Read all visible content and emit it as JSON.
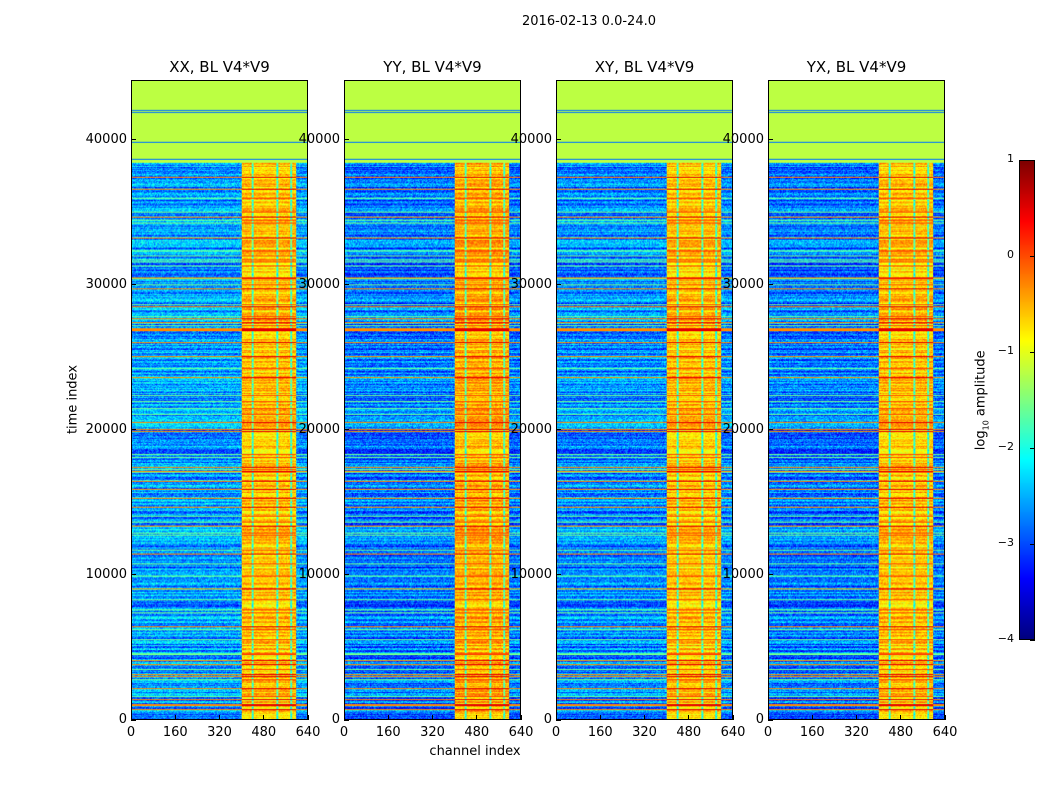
{
  "chart_data": {
    "type": "heatmap",
    "title": "2016-02-13 0.0-24.0",
    "xlabel": "channel index",
    "ylabel": "time index",
    "xlim": [
      0,
      640
    ],
    "ylim": [
      0,
      44100
    ],
    "xticks": [
      "0",
      "160",
      "320",
      "480",
      "640"
    ],
    "xtick_values": [
      0,
      160,
      320,
      480,
      640
    ],
    "yticks": [
      "0",
      "10000",
      "20000",
      "30000",
      "40000"
    ],
    "ytick_values": [
      0,
      10000,
      20000,
      30000,
      40000
    ],
    "panels": [
      {
        "title": "XX, BL V4*V9",
        "background_level": -2.6,
        "band_level": -0.6
      },
      {
        "title": "YY, BL V4*V9",
        "background_level": -2.8,
        "band_level": -0.5
      },
      {
        "title": "XY, BL V4*V9",
        "background_level": -2.7,
        "band_level": -0.6
      },
      {
        "title": "YX, BL V4*V9",
        "background_level": -2.8,
        "band_level": -0.6
      }
    ],
    "features": {
      "flagged_time_start": 38500,
      "flagged_level": -1.2,
      "bright_channel_range": [
        400,
        600
      ],
      "colormap": "jet"
    },
    "colorbar": {
      "label_prefix": "log",
      "label_sub": "10",
      "label_suffix": " amplitude",
      "range": [
        -4,
        1
      ],
      "ticks": [
        "1",
        "0",
        "−1",
        "−2",
        "−3",
        "−4"
      ],
      "tick_values": [
        1,
        0,
        -1,
        -2,
        -3,
        -4
      ]
    }
  }
}
